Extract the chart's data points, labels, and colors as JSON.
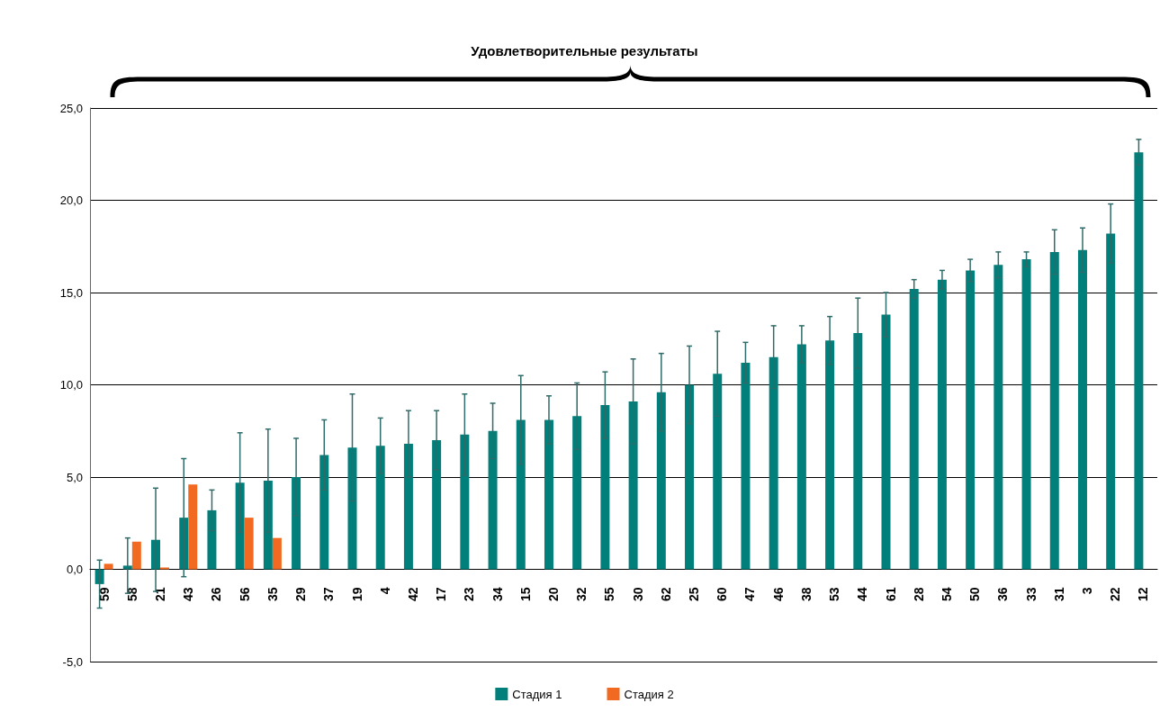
{
  "chart_data": {
    "type": "bar",
    "title": "Удовлетворительные результаты",
    "categories": [
      "59",
      "58",
      "21",
      "43",
      "26",
      "56",
      "35",
      "29",
      "37",
      "19",
      "4",
      "42",
      "17",
      "23",
      "34",
      "15",
      "20",
      "32",
      "55",
      "30",
      "62",
      "25",
      "60",
      "47",
      "46",
      "38",
      "53",
      "44",
      "61",
      "28",
      "54",
      "50",
      "36",
      "33",
      "31",
      "3",
      "22",
      "12"
    ],
    "series": [
      {
        "name": "Стадия 1",
        "color": "#007f7b",
        "values": [
          -0.8,
          0.2,
          1.6,
          2.8,
          3.2,
          4.7,
          4.8,
          5.0,
          6.2,
          6.6,
          6.7,
          6.8,
          7.0,
          7.3,
          7.5,
          8.1,
          8.1,
          8.3,
          8.9,
          9.1,
          9.6,
          10.0,
          10.6,
          11.2,
          11.5,
          12.2,
          12.4,
          12.8,
          13.8,
          15.2,
          15.7,
          16.2,
          16.5,
          16.8,
          17.2,
          17.3,
          18.2,
          22.6
        ],
        "errors": [
          1.3,
          1.5,
          2.8,
          3.2,
          1.1,
          2.7,
          2.8,
          2.1,
          1.9,
          2.9,
          1.5,
          1.8,
          1.6,
          2.2,
          1.5,
          2.4,
          1.3,
          1.8,
          1.8,
          2.3,
          2.1,
          2.1,
          2.3,
          1.1,
          1.7,
          1.0,
          1.3,
          1.9,
          1.2,
          0.5,
          0.5,
          0.6,
          0.7,
          0.4,
          1.2,
          1.2,
          1.6,
          0.7
        ]
      },
      {
        "name": "Стадия 2",
        "color": "#f26a22",
        "values": [
          0.3,
          1.5,
          0.1,
          4.6,
          null,
          2.8,
          1.7,
          null,
          null,
          null,
          null,
          null,
          null,
          null,
          null,
          null,
          null,
          null,
          null,
          null,
          null,
          null,
          null,
          null,
          null,
          null,
          null,
          null,
          null,
          null,
          null,
          null,
          null,
          null,
          null,
          null,
          null,
          null
        ]
      }
    ],
    "ylim": [
      -5,
      25
    ],
    "yticks": [
      {
        "value": -5,
        "label": "-5,0"
      },
      {
        "value": 0,
        "label": "0,0"
      },
      {
        "value": 5,
        "label": "5,0"
      },
      {
        "value": 10,
        "label": "10,0"
      },
      {
        "value": 15,
        "label": "15,0"
      },
      {
        "value": 20,
        "label": "20,0"
      },
      {
        "value": 25,
        "label": "25,0"
      }
    ],
    "grid": "y",
    "legend": "bottom"
  }
}
